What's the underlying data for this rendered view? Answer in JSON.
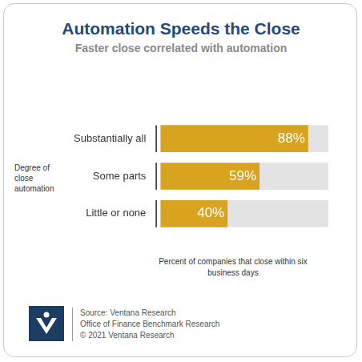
{
  "chart_data": {
    "type": "bar",
    "orientation": "horizontal",
    "title": "Automation Speeds the Close",
    "subtitle": "Faster close correlated with automation",
    "y_label": "Degree of close automation",
    "x_label": "Percent of companies that close within six business days",
    "categories": [
      "Substantially all",
      "Some parts",
      "Little or none"
    ],
    "values": [
      88,
      59,
      40
    ],
    "value_labels": [
      "88%",
      "59%",
      "40%"
    ],
    "color": "#d8a31f",
    "xlim": [
      0,
      100
    ],
    "data_labels": true,
    "tick_labels": "y",
    "grid": false,
    "source": [
      "Source: Ventana Research",
      "Office of Finance Benchmark Research",
      "© 2021 Ventana Research"
    ]
  }
}
